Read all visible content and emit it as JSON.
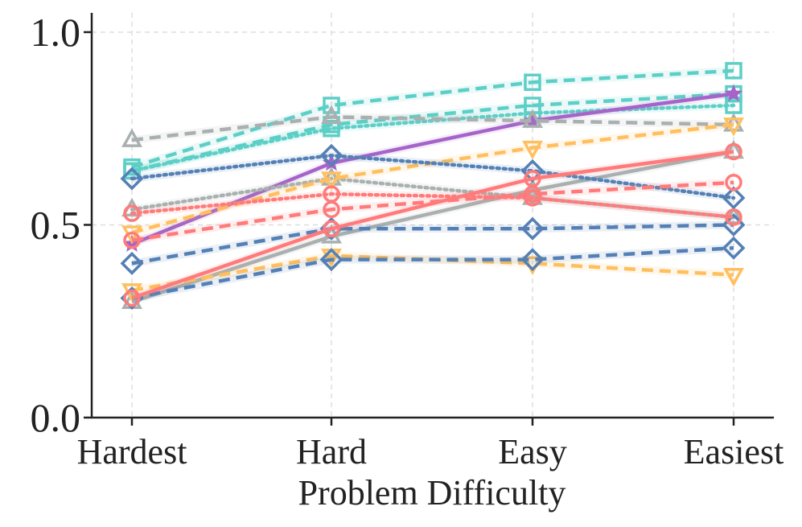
{
  "chart_data": {
    "type": "line",
    "title": "",
    "xlabel": "Problem Difficulty",
    "ylabel": "",
    "categories": [
      "Hardest",
      "Hard",
      "Easy",
      "Easiest"
    ],
    "ylim": [
      0.0,
      1.05
    ],
    "yticks": [
      0.0,
      0.5,
      1.0
    ],
    "ytick_labels": [
      "0.0",
      "0.5",
      "1.0"
    ],
    "grid": true,
    "series": [
      {
        "name": "teal-square-dashed-a",
        "color": "#5ccfc7",
        "marker": "square",
        "linestyle": "dashed",
        "values": [
          0.65,
          0.81,
          0.87,
          0.9
        ]
      },
      {
        "name": "teal-square-dashed-b",
        "color": "#5ccfc7",
        "marker": "square",
        "linestyle": "dashed",
        "values": [
          0.64,
          0.76,
          0.81,
          0.84
        ]
      },
      {
        "name": "teal-square-dotted",
        "color": "#5ccfc7",
        "marker": "square",
        "linestyle": "dotted",
        "values": [
          0.64,
          0.75,
          0.79,
          0.81
        ]
      },
      {
        "name": "purple-star-solid",
        "color": "#a564c9",
        "marker": "star",
        "linestyle": "solid",
        "values": [
          0.45,
          0.66,
          0.77,
          0.84
        ]
      },
      {
        "name": "gray-triangle-dashed",
        "color": "#a9b0b0",
        "marker": "triangle-up",
        "linestyle": "dashed",
        "values": [
          0.72,
          0.78,
          0.77,
          0.76
        ]
      },
      {
        "name": "gray-triangle-dotted",
        "color": "#a9b0b0",
        "marker": "triangle-up",
        "linestyle": "dotted",
        "values": [
          0.54,
          0.62,
          0.57,
          0.52
        ]
      },
      {
        "name": "gray-triangle-solid",
        "color": "#a9b0b0",
        "marker": "triangle-up",
        "linestyle": "solid",
        "values": [
          0.3,
          0.47,
          0.59,
          0.69
        ]
      },
      {
        "name": "orange-triangle-dashed-a",
        "color": "#ffbf5e",
        "marker": "triangle-down",
        "linestyle": "dashed",
        "values": [
          0.48,
          0.62,
          0.7,
          0.76
        ]
      },
      {
        "name": "orange-triangle-dashed-b",
        "color": "#ffbf5e",
        "marker": "triangle-down",
        "linestyle": "dashed",
        "values": [
          0.33,
          0.42,
          0.4,
          0.37
        ]
      },
      {
        "name": "blue-diamond-dotted",
        "color": "#5580b5",
        "marker": "diamond",
        "linestyle": "dotted",
        "values": [
          0.62,
          0.68,
          0.64,
          0.57
        ]
      },
      {
        "name": "blue-diamond-dashed-a",
        "color": "#5580b5",
        "marker": "diamond",
        "linestyle": "dashed",
        "values": [
          0.4,
          0.49,
          0.49,
          0.5
        ]
      },
      {
        "name": "blue-diamond-dashed-b",
        "color": "#5580b5",
        "marker": "diamond",
        "linestyle": "dashed",
        "values": [
          0.31,
          0.41,
          0.41,
          0.44
        ]
      },
      {
        "name": "red-circle-dotted",
        "color": "#ff7b7b",
        "marker": "circle",
        "linestyle": "dotted",
        "values": [
          0.53,
          0.58,
          0.57,
          0.52
        ]
      },
      {
        "name": "red-circle-dashed",
        "color": "#ff7b7b",
        "marker": "circle",
        "linestyle": "dashed",
        "values": [
          0.46,
          0.54,
          0.58,
          0.61
        ]
      },
      {
        "name": "red-circle-solid",
        "color": "#ff7b7b",
        "marker": "circle",
        "linestyle": "solid",
        "values": [
          0.31,
          0.49,
          0.62,
          0.69
        ]
      }
    ]
  }
}
